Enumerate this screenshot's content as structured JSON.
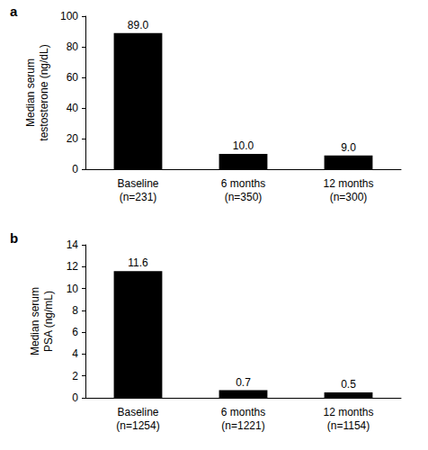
{
  "chart_data": [
    {
      "type": "bar",
      "title": "a",
      "y_label": "Median serum\ntestosterone (ng/dL)",
      "categories": [
        "Baseline\n(n=231)",
        "6 months\n(n=350)",
        "12 months\n(n=300)"
      ],
      "values": [
        89.0,
        10.0,
        9.0
      ],
      "value_labels": [
        "89.0",
        "10.0",
        "9.0"
      ],
      "color": "#000000",
      "ylim": [
        0,
        100
      ],
      "yticks": [
        0,
        20,
        40,
        60,
        80,
        100
      ],
      "grid": false,
      "data_labels": true
    },
    {
      "type": "bar",
      "title": "b",
      "y_label": "Median serum\nPSA (ng/mL)",
      "categories": [
        "Baseline\n(n=1254)",
        "6 months\n(n=1221)",
        "12 months\n(n=1154)"
      ],
      "values": [
        11.6,
        0.7,
        0.5
      ],
      "color": "#000000",
      "ylim": [
        0,
        14
      ],
      "yticks": [
        0,
        2,
        4,
        6,
        8,
        10,
        12,
        14
      ],
      "grid": false,
      "data_labels": true
    }
  ]
}
